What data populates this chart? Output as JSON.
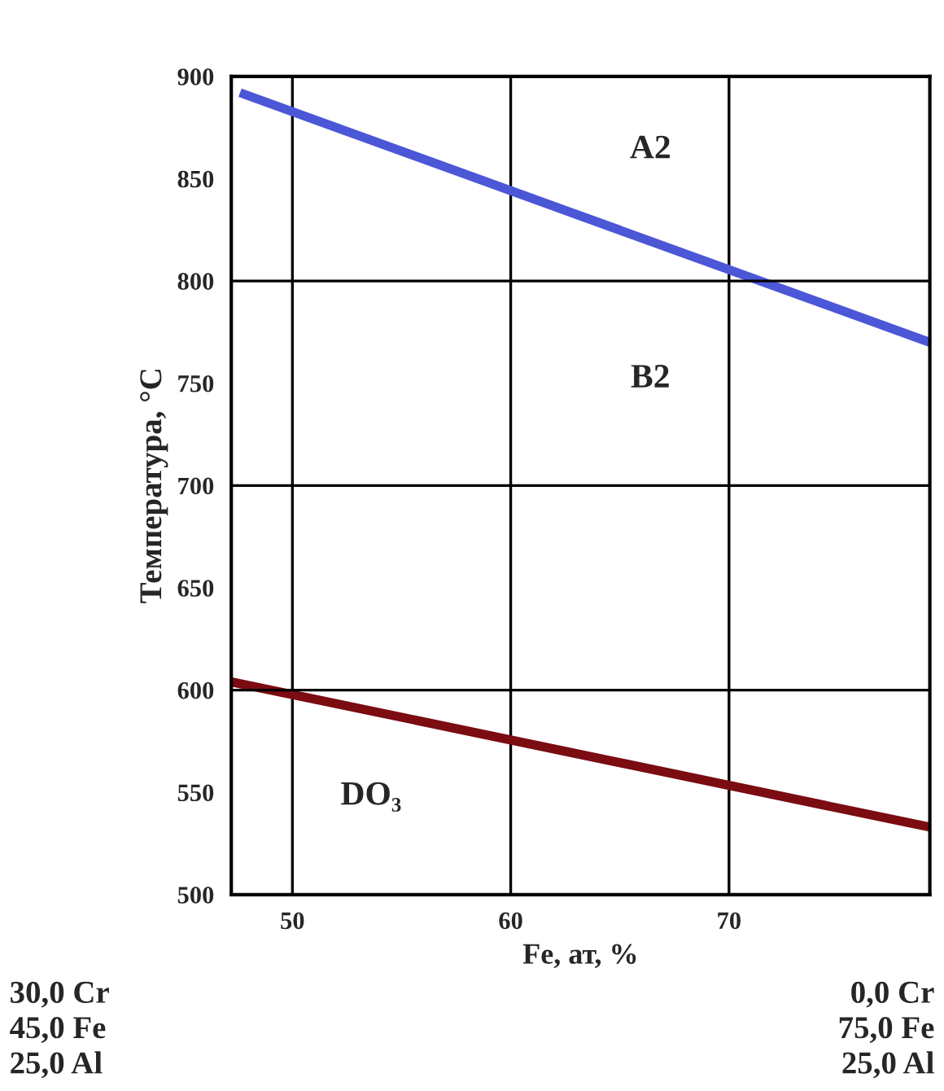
{
  "chart_data": {
    "type": "line",
    "xlabel": "Fe, ат, %",
    "ylabel": "Температура, °С",
    "xlim": [
      47.2,
      79.2
    ],
    "xticks": [
      50,
      60,
      70
    ],
    "ylim": [
      500,
      900
    ],
    "yticks": [
      500,
      550,
      600,
      650,
      700,
      750,
      800,
      850,
      900
    ],
    "grid": "x",
    "legend": false,
    "marker": "none",
    "line_style": "solid",
    "series": [
      {
        "color": "#4b57d6",
        "x": [
          47.6,
          79.2
        ],
        "values": [
          892,
          770
        ]
      },
      {
        "color": "#7a0c12",
        "x": [
          47.2,
          79.2
        ],
        "values": [
          604,
          533
        ]
      }
    ],
    "ref_lines": [
      {
        "axis": "y",
        "value": 600,
        "color": "#000000"
      },
      {
        "axis": "y",
        "value": 700,
        "color": "#000000"
      },
      {
        "axis": "y",
        "value": 800,
        "color": "#000000"
      }
    ],
    "annotations": [
      "A2",
      "B2",
      "DO₃",
      "30,0 Cr\n45,0 Fe\n25,0 Al",
      "0,0 Cr\n75,0 Fe\n25,0 Al"
    ]
  }
}
